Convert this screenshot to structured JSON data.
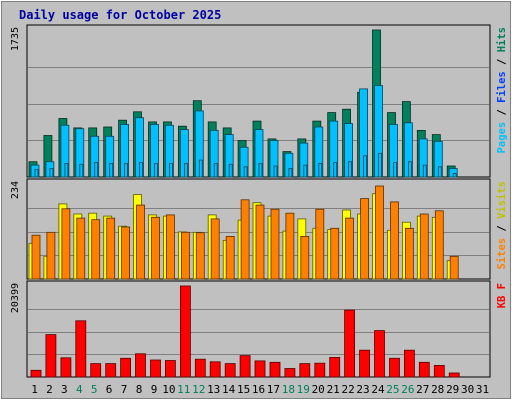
{
  "title": "Daily usage for October 2025",
  "colors": {
    "frame_bg": "#c0c0c0",
    "plot_bg": "#c0c0c0",
    "grid": "#808080",
    "title": "#0000a0",
    "hits": "#00805c",
    "files": "#00c0ff",
    "pages": "#00c0ff",
    "visits": "#ffff00",
    "sites": "#ff8000",
    "kbytes": "#ff0000",
    "weekend_label": "#00805c",
    "weekday_label": "#000000"
  },
  "chart_data": [
    {
      "type": "bar",
      "name": "hits-files-pages",
      "categories": [
        "1",
        "2",
        "3",
        "4",
        "5",
        "6",
        "7",
        "8",
        "9",
        "10",
        "11",
        "12",
        "13",
        "14",
        "15",
        "16",
        "17",
        "18",
        "19",
        "20",
        "21",
        "22",
        "23",
        "24",
        "25",
        "26",
        "27",
        "28",
        "29",
        "30",
        "31"
      ],
      "ymax_label": "1735",
      "ylim": [
        0,
        1735
      ],
      "series_labels": [
        "Pages",
        "Files",
        "Hits"
      ],
      "series": [
        {
          "name": "Hits",
          "values": [
            180,
            490,
            690,
            580,
            580,
            590,
            670,
            770,
            650,
            650,
            600,
            900,
            650,
            580,
            430,
            660,
            450,
            300,
            450,
            660,
            760,
            800,
            1000,
            1735,
            760,
            890,
            550,
            500,
            130,
            0,
            0
          ]
        },
        {
          "name": "Files",
          "values": [
            140,
            180,
            610,
            570,
            480,
            480,
            620,
            700,
            620,
            610,
            560,
            780,
            550,
            500,
            350,
            560,
            430,
            280,
            400,
            590,
            660,
            630,
            1040,
            1080,
            620,
            640,
            450,
            420,
            100,
            0,
            0
          ]
        },
        {
          "name": "Pages",
          "values": [
            90,
            100,
            160,
            150,
            170,
            160,
            160,
            170,
            160,
            160,
            160,
            200,
            160,
            150,
            120,
            160,
            130,
            100,
            140,
            160,
            170,
            180,
            250,
            280,
            170,
            180,
            140,
            120,
            40,
            0,
            0
          ]
        }
      ]
    },
    {
      "type": "bar",
      "name": "visits-sites",
      "categories": [
        "1",
        "2",
        "3",
        "4",
        "5",
        "6",
        "7",
        "8",
        "9",
        "10",
        "11",
        "12",
        "13",
        "14",
        "15",
        "16",
        "17",
        "18",
        "19",
        "20",
        "21",
        "22",
        "23",
        "24",
        "25",
        "26",
        "27",
        "28",
        "29",
        "30",
        "31"
      ],
      "ymax_label": "234",
      "ylim": [
        0,
        234
      ],
      "series_labels": [
        "Sites",
        "Visits"
      ],
      "series": [
        {
          "name": "Visits",
          "values": [
            88,
            56,
            185,
            160,
            162,
            155,
            130,
            208,
            158,
            155,
            116,
            115,
            158,
            95,
            145,
            188,
            155,
            118,
            148,
            125,
            122,
            170,
            160,
            210,
            120,
            140,
            155,
            152,
            45,
            0,
            0
          ]
        },
        {
          "name": "Sites",
          "values": [
            108,
            115,
            173,
            150,
            146,
            150,
            128,
            182,
            152,
            158,
            115,
            114,
            148,
            105,
            195,
            182,
            172,
            162,
            105,
            172,
            125,
            150,
            198,
            229,
            190,
            125,
            160,
            168,
            56,
            0,
            0
          ]
        }
      ]
    },
    {
      "type": "bar",
      "name": "kbytes",
      "categories": [
        "1",
        "2",
        "3",
        "4",
        "5",
        "6",
        "7",
        "8",
        "9",
        "10",
        "11",
        "12",
        "13",
        "14",
        "15",
        "16",
        "17",
        "18",
        "19",
        "20",
        "21",
        "22",
        "23",
        "24",
        "25",
        "26",
        "27",
        "28",
        "29",
        "30",
        "31"
      ],
      "ymax_label": "20399",
      "ylim": [
        0,
        20399
      ],
      "series_labels": [
        "KB F"
      ],
      "series": [
        {
          "name": "KB F",
          "values": [
            1500,
            9500,
            4300,
            12600,
            3000,
            3000,
            4200,
            5200,
            3800,
            3700,
            20399,
            4000,
            3400,
            3000,
            4800,
            3600,
            3300,
            1900,
            3000,
            3100,
            4400,
            15000,
            6000,
            10400,
            4200,
            6000,
            3300,
            2600,
            900,
            0,
            0
          ]
        }
      ]
    }
  ],
  "weekend_days": [
    "4",
    "5",
    "11",
    "12",
    "18",
    "19",
    "25",
    "26"
  ]
}
